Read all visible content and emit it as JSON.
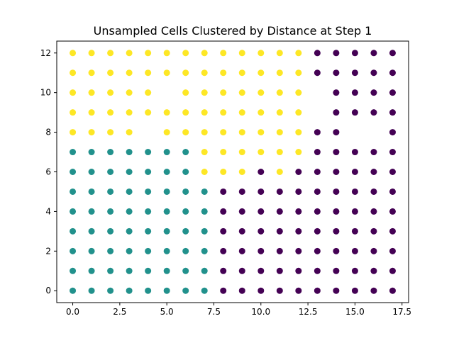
{
  "chart_data": {
    "type": "scatter",
    "title": "Unsampled Cells Clustered by Distance  at Step 1",
    "xlabel": "",
    "ylabel": "",
    "xlim": [
      -0.85,
      17.85
    ],
    "ylim": [
      -0.6,
      12.6
    ],
    "xticks": [
      0.0,
      2.5,
      5.0,
      7.5,
      10.0,
      12.5,
      15.0,
      17.5
    ],
    "xtick_labels": [
      "0.0",
      "2.5",
      "5.0",
      "7.5",
      "10.0",
      "12.5",
      "15.0",
      "17.5"
    ],
    "yticks": [
      0,
      2,
      4,
      6,
      8,
      10,
      12
    ],
    "ytick_labels": [
      "0",
      "2",
      "4",
      "6",
      "8",
      "10",
      "12"
    ],
    "grid": false,
    "legend": "none",
    "cluster_colors": {
      "purple": "#440154",
      "teal": "#21918c",
      "yellow": "#fde725"
    },
    "rows": [
      {
        "y": 12,
        "cells": "yyyyyyyyyyyyyppppp"
      },
      {
        "y": 11,
        "cells": "yyyyyyyyyyyyyppppp"
      },
      {
        "y": 10,
        "cells": "yyyyy.yyyyyyy.pppp"
      },
      {
        "y": 9,
        "cells": "yyyyyyyyyyyyy.pppp"
      },
      {
        "y": 8,
        "cells": "yyyy.yyyyyyyypp..p"
      },
      {
        "y": 7,
        "cells": "tttttttyyyyyyppppp"
      },
      {
        "y": 6,
        "cells": "tttttttyyypypppppp"
      },
      {
        "y": 5,
        "cells": "ttttttttpppppppppp"
      },
      {
        "y": 4,
        "cells": "ttttttttpppppppppp"
      },
      {
        "y": 3,
        "cells": "ttttttttpppppppppp"
      },
      {
        "y": 2,
        "cells": "ttttttttpppppppppp"
      },
      {
        "y": 1,
        "cells": "ttttttttpppppppppp"
      },
      {
        "y": 0,
        "cells": "ttttttttpppppppppp"
      }
    ],
    "row_encoding": "each character is x = 0..17; y = yellow, t = teal, p = purple, . = no point"
  }
}
